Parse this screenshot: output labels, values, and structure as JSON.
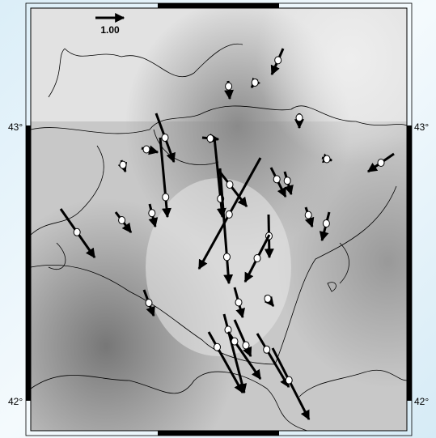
{
  "map": {
    "scale_label": "1.00",
    "lat_labels": {
      "left_43": "43°",
      "right_43": "43°",
      "left_42": "42°",
      "right_42": "42°"
    }
  }
}
